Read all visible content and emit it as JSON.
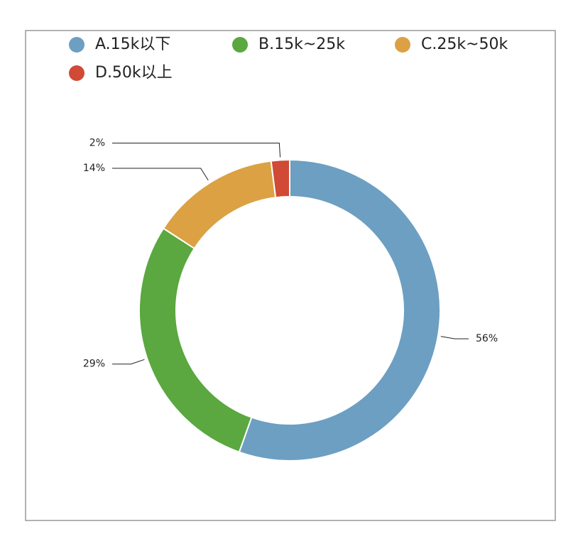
{
  "chart_data": {
    "type": "donut",
    "categories": [
      "A.15k以下",
      "B.15k~25k",
      "C.25k~50k",
      "D.50k以上"
    ],
    "values": [
      56,
      29,
      14,
      2
    ],
    "value_labels": [
      "56%",
      "29%",
      "14%",
      "2%"
    ],
    "colors": [
      "#6c9fc2",
      "#5aa83f",
      "#dba143",
      "#d04a35"
    ],
    "legend": "top-left"
  }
}
